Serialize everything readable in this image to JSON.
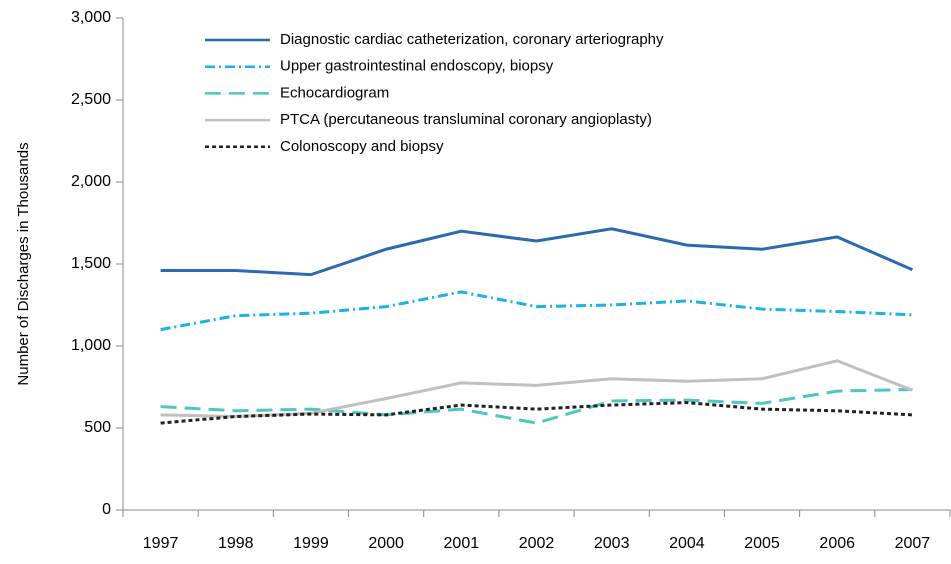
{
  "chart_data": {
    "type": "line",
    "y_label": "Number of Discharges in Thousands",
    "categories": [
      "1997",
      "1998",
      "1999",
      "2000",
      "2001",
      "2002",
      "2003",
      "2004",
      "2005",
      "2006",
      "2007"
    ],
    "series": [
      {
        "name": "Diagnostic cardiac catheterization, coronary arteriography",
        "color": "#2a6ab0",
        "dash": "solid",
        "values": [
          1460,
          1460,
          1435,
          1590,
          1700,
          1640,
          1715,
          1615,
          1590,
          1665,
          1465
        ]
      },
      {
        "name": "Upper gastrointestinal endoscopy, biopsy",
        "color": "#1ab2e8",
        "dash": "dashdot",
        "values": [
          1100,
          1185,
          1200,
          1240,
          1330,
          1240,
          1250,
          1275,
          1225,
          1210,
          1190
        ]
      },
      {
        "name": "Echocardiogram",
        "color": "#4dc8c0",
        "dash": "dashed",
        "values": [
          630,
          605,
          615,
          580,
          615,
          530,
          665,
          670,
          650,
          725,
          735
        ]
      },
      {
        "name": "PTCA (percutaneous transluminal coronary angioplasty)",
        "color": "#c0c0c0",
        "dash": "solid",
        "values": [
          580,
          570,
          590,
          680,
          775,
          760,
          800,
          785,
          800,
          910,
          730
        ]
      },
      {
        "name": "Colonoscopy and biopsy",
        "color": "#222222",
        "dash": "dotted",
        "values": [
          530,
          570,
          585,
          580,
          640,
          615,
          640,
          655,
          615,
          605,
          580
        ]
      }
    ],
    "ylim": [
      0,
      3000
    ],
    "yticks": [
      0,
      500,
      {
        "value": 1000,
        "label": "1,000"
      },
      {
        "value": 1500,
        "label": "1,500"
      },
      {
        "value": 2000,
        "label": "2,000"
      },
      {
        "value": 2500,
        "label": "2,500"
      },
      {
        "value": 3000,
        "label": "3,000"
      }
    ],
    "grid": false,
    "legend": "top"
  }
}
